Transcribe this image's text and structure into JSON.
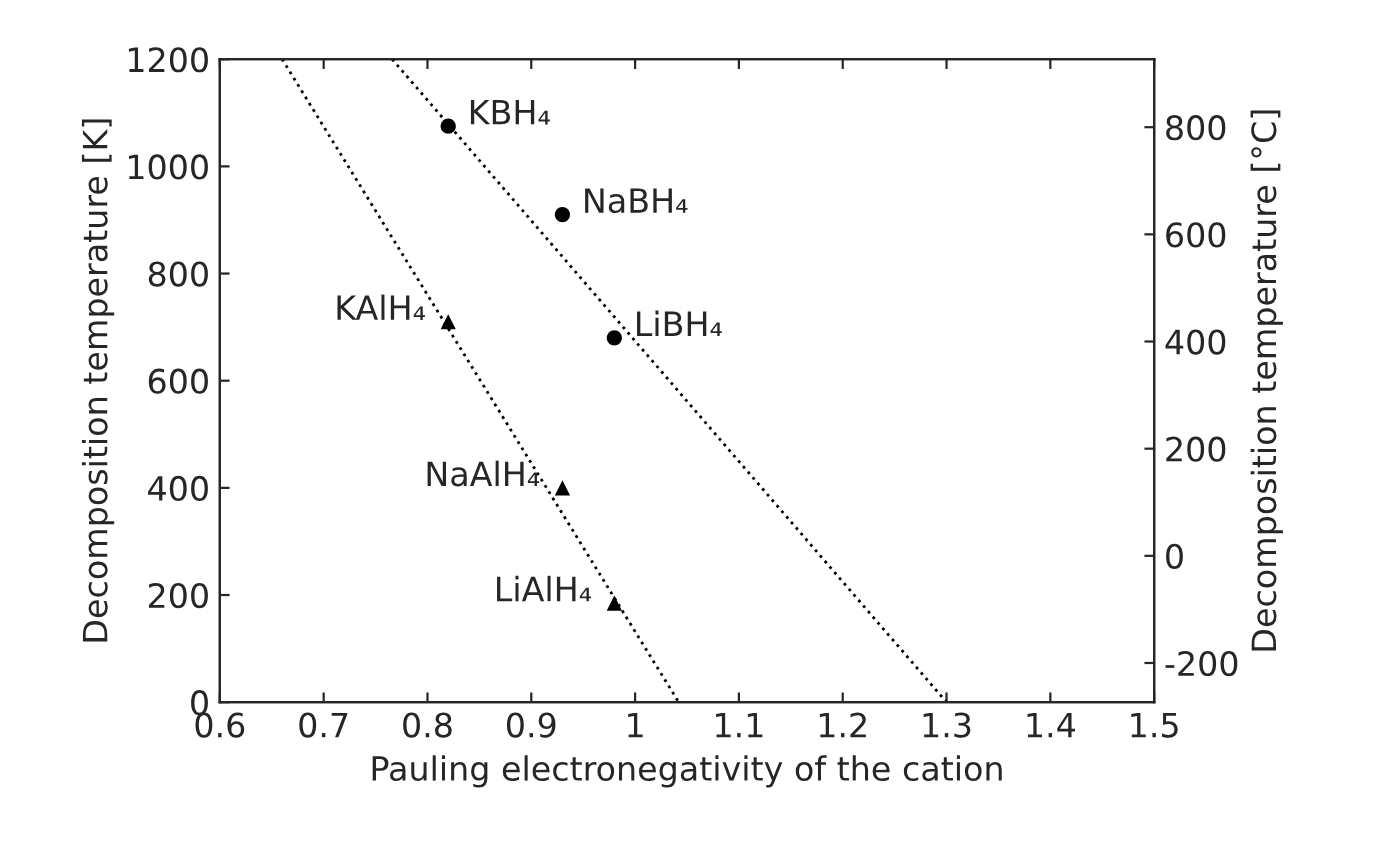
{
  "chart_data": {
    "type": "scatter",
    "xlabel": "Pauling electronegativity of the cation",
    "ylabel": "Decomposition temperature [K]",
    "y2label": "Decomposition temperature [°C]",
    "xlim": [
      0.6,
      1.5
    ],
    "xticks": [
      0.6,
      0.7,
      0.8,
      0.9,
      {
        "value": 1.0,
        "label": "1"
      },
      1.1,
      1.2,
      1.3,
      1.4,
      1.5
    ],
    "ylim": [
      0,
      1200
    ],
    "yticks": [
      0,
      200,
      400,
      600,
      800,
      1000,
      1200
    ],
    "y2lim": [
      -273.15,
      926.85
    ],
    "y2ticks": [
      -200,
      0,
      200,
      400,
      600,
      800
    ],
    "grid": false,
    "legend": false,
    "series": [
      {
        "marker": "circle",
        "color": "#000000",
        "x": [
          0.82,
          0.93,
          0.98
        ],
        "values": [
          1075,
          910,
          680
        ]
      },
      {
        "marker": "triangle",
        "color": "#000000",
        "x": [
          0.82,
          0.93,
          0.98
        ],
        "values": [
          710,
          400,
          185
        ]
      },
      {
        "type": "line",
        "line_style": "dotted",
        "marker": "none",
        "color": "#000000",
        "x": [
          0.66,
          1.042
        ],
        "values": [
          1200,
          0
        ]
      },
      {
        "type": "line",
        "line_style": "dotted",
        "marker": "none",
        "color": "#000000",
        "x": [
          0.766,
          1.3
        ],
        "values": [
          1200,
          0
        ]
      }
    ],
    "annotations": [
      {
        "text": "KBH₄",
        "x": 0.82,
        "y": 1075
      },
      {
        "text": "NaBH₄",
        "x": 0.93,
        "y": 910
      },
      {
        "text": "LiBH₄",
        "x": 0.98,
        "y": 680
      },
      {
        "text": "KAlH₄",
        "x": 0.82,
        "y": 710
      },
      {
        "text": "NaAlH₄",
        "x": 0.93,
        "y": 400
      },
      {
        "text": "LiAlH₄",
        "x": 0.98,
        "y": 185
      }
    ]
  }
}
